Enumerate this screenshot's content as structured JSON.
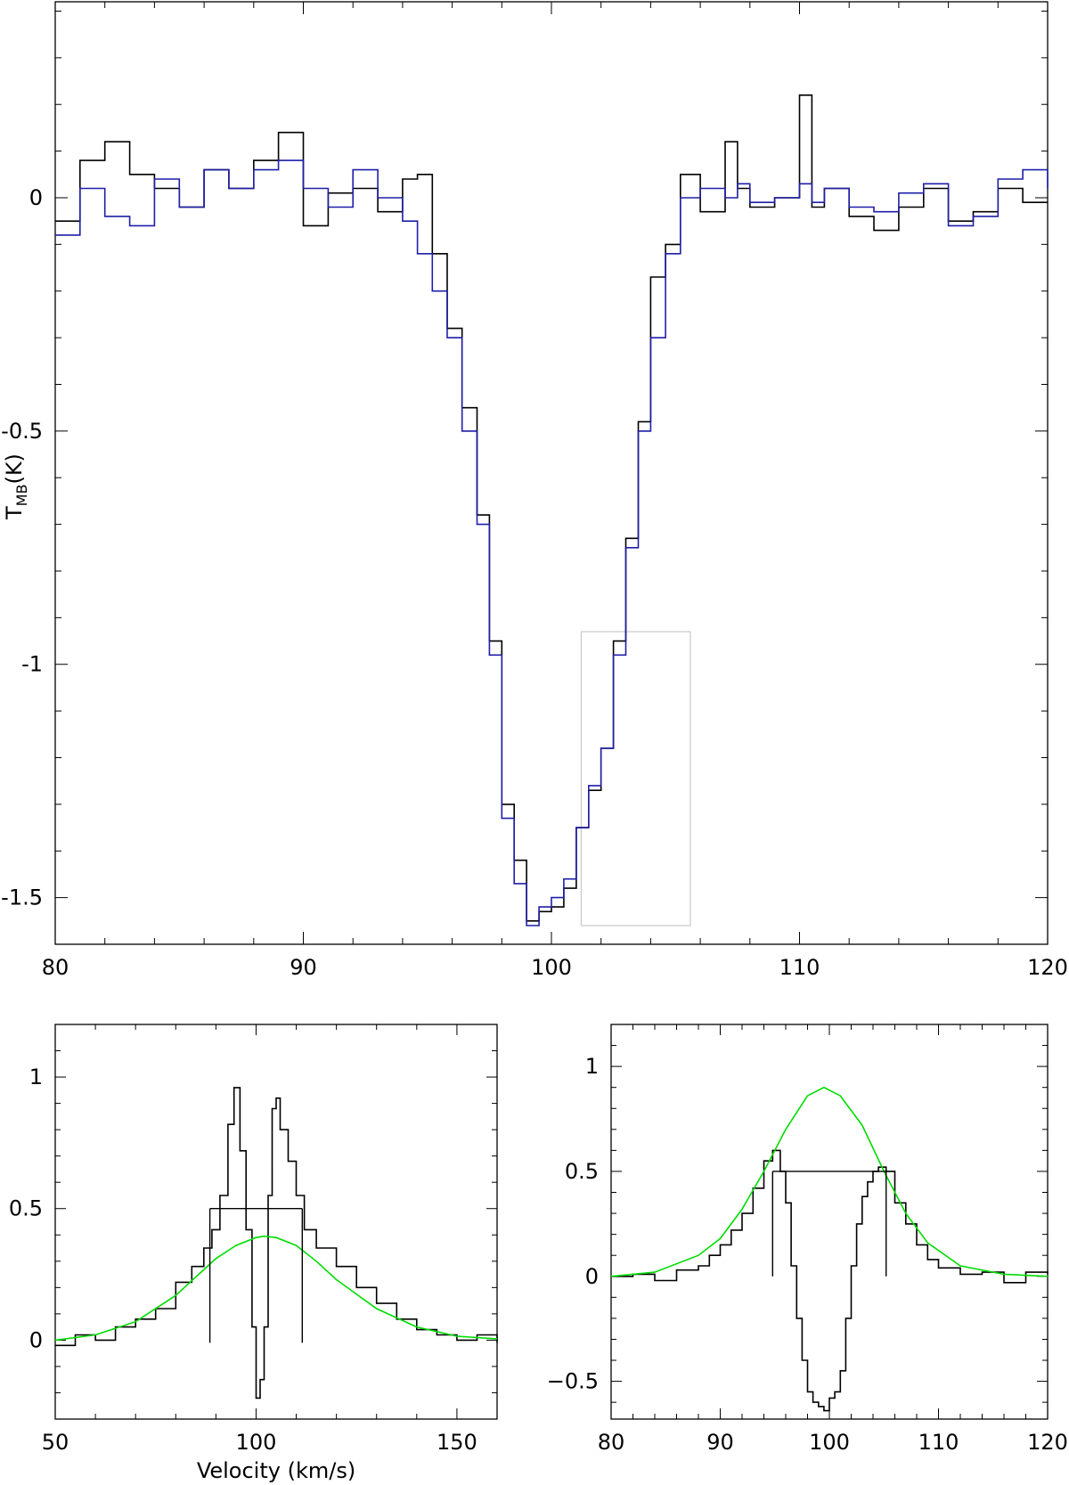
{
  "chart_data": [
    {
      "type": "line",
      "panel": "main",
      "title": "",
      "xlabel": "",
      "ylabel": "T_MB(K)",
      "ylabel_parts": {
        "main": "T",
        "sub": "MB",
        "unit": "(K)"
      },
      "xlim": [
        80,
        120
      ],
      "ylim": [
        -1.6,
        0.42
      ],
      "xticks": [
        80,
        90,
        100,
        110,
        120
      ],
      "xtick_labels": [
        "80",
        "90",
        "100",
        "110",
        "120"
      ],
      "yticks": [
        0,
        -0.5,
        -1,
        -1.5
      ],
      "ytick_labels": [
        "0",
        "-0.5",
        "-1",
        "-1.5"
      ],
      "grid": false,
      "series": [
        {
          "color": "#000000",
          "style": "step",
          "x": [
            80,
            81,
            82,
            83,
            84,
            85,
            86,
            87,
            88,
            89,
            90,
            91,
            92,
            93,
            94,
            94.6,
            95.2,
            95.8,
            96.4,
            97,
            97.5,
            98,
            98.5,
            99,
            99.5,
            100,
            100.5,
            101,
            101.5,
            102,
            102.5,
            103,
            103.5,
            104,
            104.6,
            105.2,
            106,
            107,
            107.5,
            108,
            109,
            110,
            110.5,
            111,
            112,
            113,
            114,
            115,
            116,
            117,
            118,
            119,
            120
          ],
          "y": [
            -0.05,
            0.08,
            0.12,
            0.05,
            0.02,
            -0.02,
            0.06,
            0.02,
            0.08,
            0.14,
            -0.06,
            0.01,
            0.02,
            -0.03,
            0.04,
            0.05,
            -0.12,
            -0.28,
            -0.45,
            -0.68,
            -0.95,
            -1.3,
            -1.42,
            -1.55,
            -1.53,
            -1.52,
            -1.48,
            -1.35,
            -1.27,
            -1.18,
            -0.95,
            -0.73,
            -0.48,
            -0.17,
            -0.1,
            0.05,
            -0.03,
            0.12,
            0.02,
            -0.02,
            0.0,
            0.22,
            -0.02,
            0.02,
            -0.04,
            -0.07,
            -0.02,
            0.02,
            -0.05,
            -0.03,
            0.02,
            -0.01,
            -0.01
          ]
        },
        {
          "color": "#1f1fa8",
          "style": "step",
          "x": [
            80,
            81,
            82,
            83,
            84,
            85,
            86,
            87,
            88,
            89,
            90,
            91,
            92,
            93,
            94,
            94.6,
            95.2,
            95.8,
            96.4,
            97,
            97.5,
            98,
            98.5,
            99,
            99.5,
            100,
            100.5,
            101,
            101.5,
            102,
            102.5,
            103,
            103.5,
            104,
            104.6,
            105.2,
            106,
            107,
            107.5,
            108,
            109,
            110,
            110.5,
            111,
            112,
            113,
            114,
            115,
            116,
            117,
            118,
            119,
            120
          ],
          "y": [
            -0.08,
            0.02,
            -0.04,
            -0.06,
            0.04,
            -0.02,
            0.06,
            0.02,
            0.06,
            0.08,
            0.02,
            -0.02,
            0.06,
            0.0,
            -0.05,
            -0.12,
            -0.2,
            -0.3,
            -0.5,
            -0.7,
            -0.98,
            -1.33,
            -1.47,
            -1.56,
            -1.52,
            -1.5,
            -1.46,
            -1.35,
            -1.26,
            -1.18,
            -0.98,
            -0.75,
            -0.5,
            -0.3,
            -0.12,
            0.0,
            0.02,
            0.0,
            0.03,
            -0.01,
            0.0,
            0.03,
            -0.01,
            0.02,
            -0.02,
            -0.03,
            0.01,
            0.03,
            -0.06,
            -0.04,
            0.04,
            0.06,
            0.02
          ]
        }
      ],
      "rectangle": {
        "x": [
          101.2,
          105.6
        ],
        "y": [
          -1.56,
          -0.93
        ],
        "color": "#c8c8c8"
      }
    },
    {
      "type": "line",
      "panel": "bottom-left",
      "title": "",
      "xlabel": "Velocity (km/s)",
      "ylabel": "",
      "xlim": [
        50,
        160
      ],
      "ylim": [
        -0.3,
        1.2
      ],
      "xticks": [
        50,
        100,
        150
      ],
      "xtick_labels": [
        "50",
        "100",
        "150"
      ],
      "yticks": [
        0,
        0.5,
        1
      ],
      "ytick_labels": [
        "0",
        "0.5",
        "1"
      ],
      "grid": false,
      "series": [
        {
          "color": "#000000",
          "style": "step",
          "x": [
            50,
            55,
            60,
            65,
            70,
            75,
            80,
            84,
            87,
            89,
            91,
            93,
            94.5,
            96,
            97.5,
            99,
            100,
            101,
            102,
            103,
            104,
            105,
            106,
            108,
            110,
            112,
            115,
            120,
            125,
            130,
            135,
            140,
            145,
            150,
            155,
            160
          ],
          "y": [
            -0.02,
            0.02,
            0.0,
            0.05,
            0.08,
            0.12,
            0.22,
            0.28,
            0.35,
            0.42,
            0.55,
            0.82,
            0.96,
            0.72,
            0.42,
            0.05,
            -0.22,
            -0.15,
            0.05,
            0.55,
            0.88,
            0.92,
            0.8,
            0.68,
            0.55,
            0.42,
            0.35,
            0.28,
            0.2,
            0.14,
            0.08,
            0.04,
            0.02,
            0.0,
            0.02,
            -0.01
          ]
        },
        {
          "color": "#00dd00",
          "style": "line",
          "x": [
            50,
            60,
            70,
            80,
            85,
            90,
            95,
            100,
            102,
            105,
            110,
            115,
            120,
            130,
            140,
            150,
            160
          ],
          "y": [
            0.0,
            0.02,
            0.07,
            0.17,
            0.24,
            0.31,
            0.36,
            0.39,
            0.395,
            0.39,
            0.36,
            0.3,
            0.23,
            0.12,
            0.05,
            0.015,
            0.005
          ]
        }
      ],
      "markers": {
        "horizontal": {
          "x": [
            88.5,
            111.5
          ],
          "y": 0.5
        },
        "vertical": [
          {
            "x": 88.5,
            "y": [
              -0.01,
              0.5
            ]
          },
          {
            "x": 111.5,
            "y": [
              -0.01,
              0.5
            ]
          }
        ]
      }
    },
    {
      "type": "line",
      "panel": "bottom-right",
      "title": "",
      "xlabel": "",
      "ylabel": "",
      "xlim": [
        80,
        120
      ],
      "ylim": [
        -0.68,
        1.2
      ],
      "xticks": [
        80,
        90,
        100,
        110,
        120
      ],
      "xtick_labels": [
        "80",
        "90",
        "100",
        "110",
        "120"
      ],
      "yticks": [
        -0.5,
        0,
        0.5,
        1
      ],
      "ytick_labels": [
        "−0.5",
        "0",
        "0.5",
        "1"
      ],
      "grid": false,
      "series": [
        {
          "color": "#000000",
          "style": "step",
          "x": [
            80,
            82,
            84,
            86,
            88,
            89,
            90,
            91,
            92,
            93,
            94,
            94.8,
            95.5,
            96,
            96.5,
            97,
            97.5,
            98,
            98.5,
            99,
            99.5,
            100,
            100.5,
            101,
            101.5,
            102,
            102.5,
            103,
            103.5,
            104,
            104.5,
            105.2,
            106,
            107,
            108,
            109,
            110,
            112,
            114,
            116,
            118,
            120
          ],
          "y": [
            0.0,
            0.01,
            -0.02,
            0.03,
            0.05,
            0.1,
            0.15,
            0.22,
            0.3,
            0.42,
            0.55,
            0.6,
            0.5,
            0.35,
            0.05,
            -0.2,
            -0.4,
            -0.55,
            -0.6,
            -0.62,
            -0.64,
            -0.58,
            -0.55,
            -0.45,
            -0.2,
            0.05,
            0.25,
            0.38,
            0.45,
            0.5,
            0.52,
            0.5,
            0.35,
            0.25,
            0.15,
            0.08,
            0.04,
            0.01,
            0.02,
            -0.03,
            0.02,
            0.01
          ]
        },
        {
          "color": "#00dd00",
          "style": "line",
          "x": [
            80,
            84,
            88,
            90,
            92,
            94,
            96,
            98,
            99.5,
            101,
            103,
            105,
            107,
            109,
            112,
            116,
            120
          ],
          "y": [
            0.0,
            0.02,
            0.1,
            0.18,
            0.32,
            0.5,
            0.7,
            0.86,
            0.9,
            0.86,
            0.72,
            0.5,
            0.3,
            0.16,
            0.05,
            0.01,
            0.0
          ]
        }
      ],
      "markers": {
        "horizontal": {
          "x": [
            94.8,
            105.2
          ],
          "y": 0.5
        },
        "vertical": [
          {
            "x": 94.8,
            "y": [
              0.0,
              0.5
            ]
          },
          {
            "x": 105.2,
            "y": [
              0.0,
              0.5
            ]
          }
        ]
      }
    }
  ]
}
